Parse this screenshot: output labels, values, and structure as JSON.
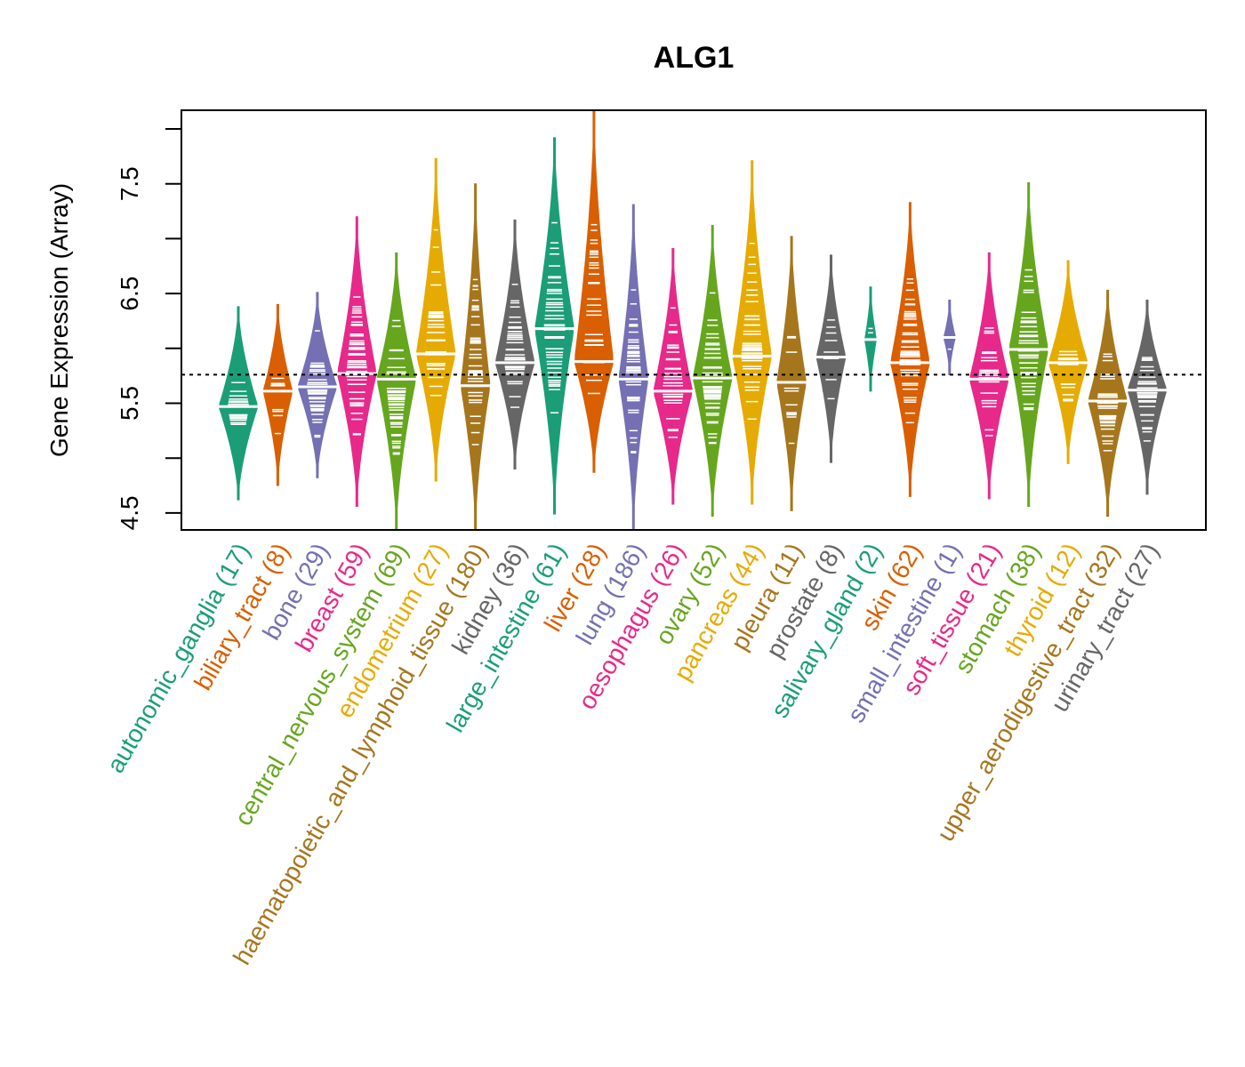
{
  "chart_data": {
    "type": "violin",
    "title": "ALG1",
    "xlabel": "",
    "ylabel": "Gene Expression (Array)",
    "ylim": [
      4.35,
      8.17
    ],
    "yticks": [
      4.5,
      5.0,
      5.5,
      6.0,
      6.5,
      7.0,
      7.5,
      8.0
    ],
    "ytick_labels": [
      "4.5",
      "",
      "5.5",
      "",
      "6.5",
      "",
      "7.5",
      ""
    ],
    "reference_line": 5.76,
    "grid": false,
    "legend": "none",
    "categories": [
      {
        "name": "autonomic_ganglia",
        "n": 17,
        "label": "autonomic_ganglia (17)",
        "color": "#1B9E77",
        "median": 5.47,
        "min": 4.62,
        "max": 6.38
      },
      {
        "name": "biliary_tract",
        "n": 8,
        "label": "biliary_tract (8)",
        "color": "#D95F02",
        "median": 5.61,
        "min": 4.75,
        "max": 6.4
      },
      {
        "name": "bone",
        "n": 29,
        "label": "bone (29)",
        "color": "#7570B3",
        "median": 5.65,
        "min": 4.82,
        "max": 6.51
      },
      {
        "name": "breast",
        "n": 59,
        "label": "breast (59)",
        "color": "#E7298A",
        "median": 5.77,
        "min": 4.56,
        "max": 7.2
      },
      {
        "name": "central_nervous_system",
        "n": 69,
        "label": "central_nervous_system (69)",
        "color": "#66A61E",
        "median": 5.72,
        "min": 4.35,
        "max": 6.87
      },
      {
        "name": "endometrium",
        "n": 27,
        "label": "endometrium (27)",
        "color": "#E6AB02",
        "median": 5.95,
        "min": 4.79,
        "max": 7.73
      },
      {
        "name": "haematopoietic_and_lymphoid_tissue",
        "n": 180,
        "label": "haematopoietic_and_lymphoid_tissue (180)",
        "color": "#A6761D",
        "median": 5.66,
        "min": 4.35,
        "max": 7.5
      },
      {
        "name": "kidney",
        "n": 36,
        "label": "kidney (36)",
        "color": "#666666",
        "median": 5.87,
        "min": 4.9,
        "max": 7.17
      },
      {
        "name": "large_intestine",
        "n": 61,
        "label": "large_intestine (61)",
        "color": "#1B9E77",
        "median": 6.18,
        "min": 4.49,
        "max": 7.92
      },
      {
        "name": "liver",
        "n": 28,
        "label": "liver (28)",
        "color": "#D95F02",
        "median": 5.88,
        "min": 4.87,
        "max": 8.17
      },
      {
        "name": "lung",
        "n": 186,
        "label": "lung (186)",
        "color": "#7570B3",
        "median": 5.72,
        "min": 4.35,
        "max": 7.31
      },
      {
        "name": "oesophagus",
        "n": 26,
        "label": "oesophagus (26)",
        "color": "#E7298A",
        "median": 5.61,
        "min": 4.58,
        "max": 6.91
      },
      {
        "name": "ovary",
        "n": 52,
        "label": "ovary (52)",
        "color": "#66A61E",
        "median": 5.73,
        "min": 4.47,
        "max": 7.12
      },
      {
        "name": "pancreas",
        "n": 44,
        "label": "pancreas (44)",
        "color": "#E6AB02",
        "median": 5.93,
        "min": 4.58,
        "max": 7.71
      },
      {
        "name": "pleura",
        "n": 11,
        "label": "pleura (11)",
        "color": "#A6761D",
        "median": 5.69,
        "min": 4.52,
        "max": 7.02
      },
      {
        "name": "prostate",
        "n": 8,
        "label": "prostate (8)",
        "color": "#666666",
        "median": 5.92,
        "min": 4.96,
        "max": 6.85
      },
      {
        "name": "salivary_gland",
        "n": 2,
        "label": "salivary_gland (2)",
        "color": "#1B9E77",
        "median": 6.08,
        "min": 5.61,
        "max": 6.56
      },
      {
        "name": "skin",
        "n": 62,
        "label": "skin (62)",
        "color": "#D95F02",
        "median": 5.87,
        "min": 4.65,
        "max": 7.33
      },
      {
        "name": "small_intestine",
        "n": 1,
        "label": "small_intestine (1)",
        "color": "#7570B3",
        "median": 6.1,
        "min": 5.76,
        "max": 6.44
      },
      {
        "name": "soft_tissue",
        "n": 21,
        "label": "soft_tissue (21)",
        "color": "#E7298A",
        "median": 5.72,
        "min": 4.63,
        "max": 6.87
      },
      {
        "name": "stomach",
        "n": 38,
        "label": "stomach (38)",
        "color": "#66A61E",
        "median": 5.99,
        "min": 4.56,
        "max": 7.51
      },
      {
        "name": "thyroid",
        "n": 12,
        "label": "thyroid (12)",
        "color": "#E6AB02",
        "median": 5.87,
        "min": 4.95,
        "max": 6.8
      },
      {
        "name": "upper_aerodigestive_tract",
        "n": 32,
        "label": "upper_aerodigestive_tract (32)",
        "color": "#A6761D",
        "median": 5.52,
        "min": 4.47,
        "max": 6.53
      },
      {
        "name": "urinary_tract",
        "n": 27,
        "label": "urinary_tract (27)",
        "color": "#666666",
        "median": 5.62,
        "min": 4.67,
        "max": 6.44
      }
    ]
  }
}
